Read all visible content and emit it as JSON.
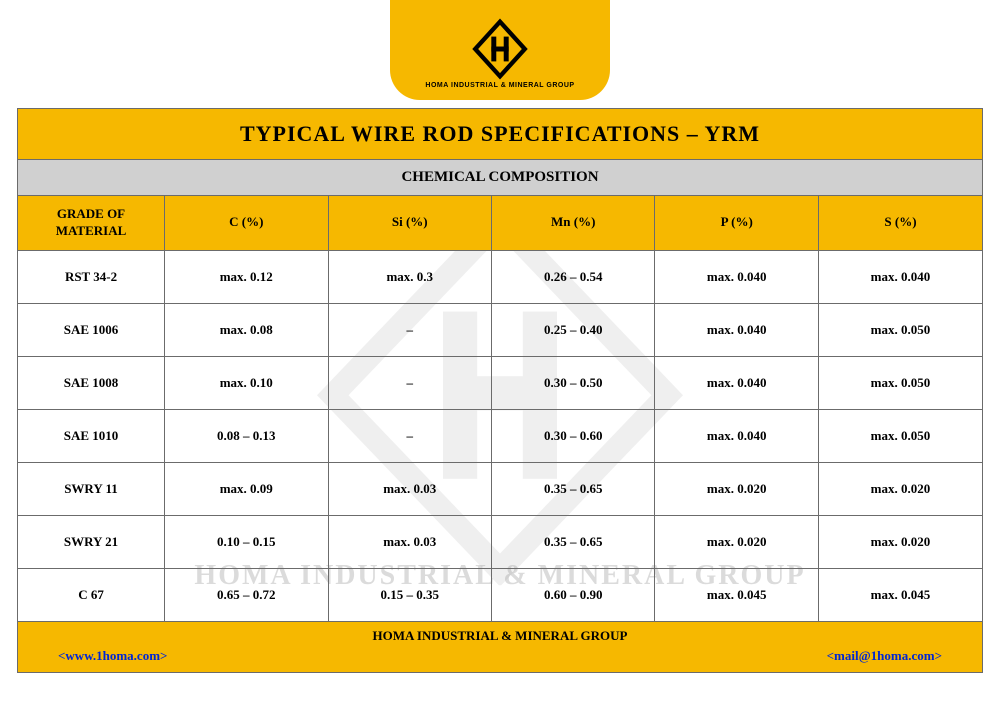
{
  "logo": {
    "caption": "HOMA INDUSTRIAL & MINERAL GROUP",
    "banner_color": "#f6b800",
    "mark_color": "#000000"
  },
  "watermark_text": "HOMA INDUSTRIAL & MINERAL GROUP",
  "title": "TYPICAL WIRE ROD SPECIFICATIONS – YRM",
  "section": "CHEMICAL COMPOSITION",
  "table": {
    "type": "table",
    "header_bg": "#f6b800",
    "section_bg": "#d0d0d0",
    "border_color": "#6b6b6b",
    "text_color": "#000000",
    "font_family": "Georgia, serif",
    "header_fontsize": 13,
    "cell_fontsize": 13,
    "columns": [
      {
        "label": "GRADE OF\nMATERIAL",
        "width_pct": 15.2,
        "align": "center"
      },
      {
        "label": "C (%)",
        "width_pct": 16.96,
        "align": "center"
      },
      {
        "label": "Si (%)",
        "width_pct": 16.96,
        "align": "center"
      },
      {
        "label": "Mn (%)",
        "width_pct": 16.96,
        "align": "center"
      },
      {
        "label": "P (%)",
        "width_pct": 16.96,
        "align": "center"
      },
      {
        "label": "S (%)",
        "width_pct": 16.96,
        "align": "center"
      }
    ],
    "rows": [
      [
        "RST 34-2",
        "max. 0.12",
        "max. 0.3",
        "0.26 – 0.54",
        "max. 0.040",
        "max. 0.040"
      ],
      [
        "SAE 1006",
        "max. 0.08",
        "–",
        "0.25 – 0.40",
        "max. 0.040",
        "max. 0.050"
      ],
      [
        "SAE 1008",
        "max. 0.10",
        "–",
        "0.30 – 0.50",
        "max. 0.040",
        "max. 0.050"
      ],
      [
        "SAE 1010",
        "0.08 – 0.13",
        "–",
        "0.30 – 0.60",
        "max. 0.040",
        "max. 0.050"
      ],
      [
        "SWRY 11",
        "max. 0.09",
        "max. 0.03",
        "0.35 – 0.65",
        "max. 0.020",
        "max. 0.020"
      ],
      [
        "SWRY 21",
        "0.10 – 0.15",
        "max. 0.03",
        "0.35 – 0.65",
        "max. 0.020",
        "max. 0.020"
      ],
      [
        "C 67",
        "0.65 – 0.72",
        "0.15 – 0.35",
        "0.60 – 0.90",
        "max. 0.045",
        "max. 0.045"
      ]
    ]
  },
  "footer": {
    "company": "HOMA INDUSTRIAL & MINERAL GROUP",
    "website": "www.1homa.com",
    "email": "mail@1homa.com",
    "bg": "#f6b800",
    "link_color": "#0026d4"
  }
}
